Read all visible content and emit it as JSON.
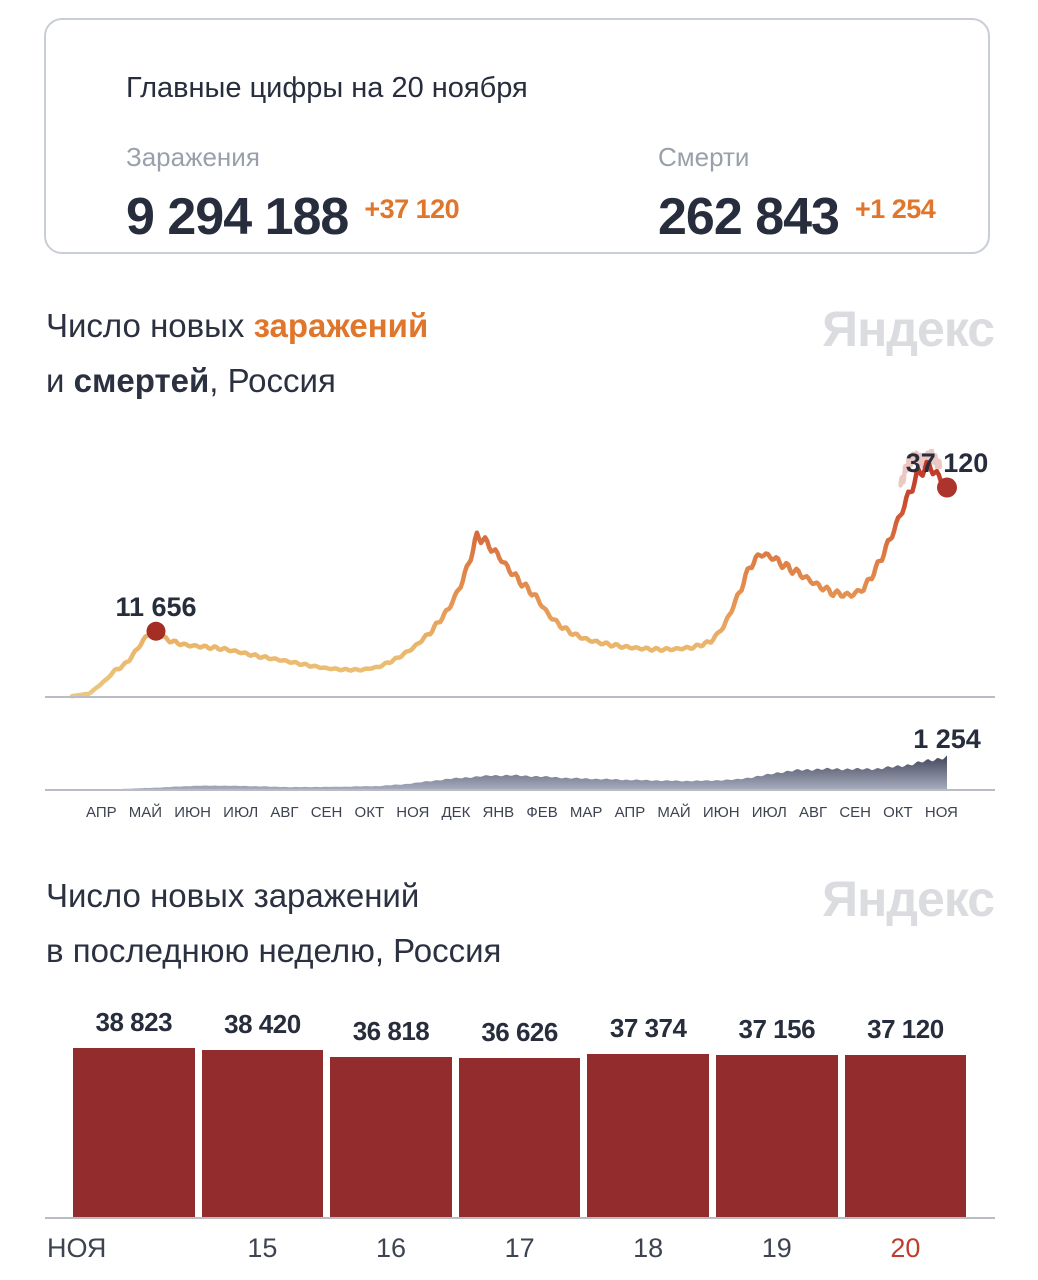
{
  "summary_card": {
    "title": "Главные цифры на 20 ноября",
    "infections": {
      "label": "Заражения",
      "value": "9 294 188",
      "delta": "+37 120"
    },
    "deaths": {
      "label": "Смерти",
      "value": "262 843",
      "delta": "+1 254"
    }
  },
  "watermark": "Яндекс",
  "timeline_section": {
    "title_part1": "Число новых ",
    "title_highlight1": "заражений",
    "title_part2": "и ",
    "title_highlight2": "смертей",
    "title_part3": ", Россия"
  },
  "weekly_section": {
    "title_line1": "Число новых заражений",
    "title_line2": "в последнюю неделю, Россия"
  },
  "chart_data": [
    {
      "type": "line",
      "name": "new-infections-timeline-russia",
      "title": "Число новых заражений, Россия",
      "x_labels": [
        "АПР",
        "МАЙ",
        "ИЮН",
        "ИЮЛ",
        "АВГ",
        "СЕН",
        "ОКТ",
        "НОЯ",
        "ДЕК",
        "ЯНВ",
        "ФЕВ",
        "МАР",
        "АПР",
        "МАЙ",
        "ИЮН",
        "ИЮЛ",
        "АВГ",
        "СЕН",
        "ОКТ",
        "НОЯ"
      ],
      "ylim": [
        0,
        44000
      ],
      "annotations": [
        {
          "label": "11 656",
          "x": 0.096,
          "value": 11656
        },
        {
          "label": "37 120",
          "x": 1.0,
          "value": 37120
        }
      ],
      "points": [
        [
          0,
          150
        ],
        [
          0.02,
          600
        ],
        [
          0.04,
          3200
        ],
        [
          0.05,
          4900
        ],
        [
          0.055,
          5100
        ],
        [
          0.065,
          6500
        ],
        [
          0.075,
          8600
        ],
        [
          0.085,
          10800
        ],
        [
          0.096,
          11656
        ],
        [
          0.105,
          10500
        ],
        [
          0.115,
          9800
        ],
        [
          0.13,
          9200
        ],
        [
          0.15,
          8900
        ],
        [
          0.17,
          8600
        ],
        [
          0.19,
          8000
        ],
        [
          0.21,
          7300
        ],
        [
          0.24,
          6500
        ],
        [
          0.27,
          5600
        ],
        [
          0.29,
          5100
        ],
        [
          0.31,
          4850
        ],
        [
          0.33,
          4800
        ],
        [
          0.35,
          5300
        ],
        [
          0.37,
          6700
        ],
        [
          0.39,
          8700
        ],
        [
          0.41,
          11500
        ],
        [
          0.43,
          15500
        ],
        [
          0.445,
          20000
        ],
        [
          0.455,
          24500
        ],
        [
          0.463,
          28500
        ],
        [
          0.47,
          28000
        ],
        [
          0.475,
          27000
        ],
        [
          0.485,
          25500
        ],
        [
          0.5,
          22500
        ],
        [
          0.515,
          20000
        ],
        [
          0.53,
          17800
        ],
        [
          0.545,
          14500
        ],
        [
          0.56,
          12400
        ],
        [
          0.575,
          11000
        ],
        [
          0.59,
          10100
        ],
        [
          0.61,
          9400
        ],
        [
          0.63,
          8900
        ],
        [
          0.65,
          8600
        ],
        [
          0.67,
          8400
        ],
        [
          0.69,
          8500
        ],
        [
          0.71,
          8800
        ],
        [
          0.73,
          9800
        ],
        [
          0.745,
          12500
        ],
        [
          0.76,
          17500
        ],
        [
          0.775,
          23200
        ],
        [
          0.787,
          25400
        ],
        [
          0.8,
          24800
        ],
        [
          0.815,
          23200
        ],
        [
          0.83,
          22000
        ],
        [
          0.85,
          20000
        ],
        [
          0.87,
          18400
        ],
        [
          0.89,
          18000
        ],
        [
          0.905,
          19200
        ],
        [
          0.92,
          23000
        ],
        [
          0.935,
          28000
        ],
        [
          0.95,
          33500
        ],
        [
          0.962,
          38000
        ],
        [
          0.972,
          40500
        ],
        [
          0.982,
          40800
        ],
        [
          0.99,
          39000
        ],
        [
          1,
          37120
        ]
      ]
    },
    {
      "type": "area",
      "name": "new-deaths-timeline-russia",
      "title": "Число новых смертей, Россия",
      "ylim": [
        0,
        1300
      ],
      "annotation": {
        "label": "1 254",
        "value": 1254
      },
      "points": [
        [
          0,
          2
        ],
        [
          0.05,
          30
        ],
        [
          0.1,
          95
        ],
        [
          0.14,
          160
        ],
        [
          0.17,
          165
        ],
        [
          0.2,
          150
        ],
        [
          0.25,
          110
        ],
        [
          0.3,
          120
        ],
        [
          0.35,
          150
        ],
        [
          0.38,
          220
        ],
        [
          0.4,
          300
        ],
        [
          0.43,
          420
        ],
        [
          0.46,
          500
        ],
        [
          0.48,
          550
        ],
        [
          0.5,
          560
        ],
        [
          0.53,
          520
        ],
        [
          0.57,
          450
        ],
        [
          0.6,
          420
        ],
        [
          0.63,
          390
        ],
        [
          0.67,
          360
        ],
        [
          0.7,
          340
        ],
        [
          0.73,
          355
        ],
        [
          0.76,
          400
        ],
        [
          0.79,
          550
        ],
        [
          0.81,
          680
        ],
        [
          0.83,
          750
        ],
        [
          0.85,
          790
        ],
        [
          0.88,
          800
        ],
        [
          0.9,
          790
        ],
        [
          0.92,
          810
        ],
        [
          0.94,
          880
        ],
        [
          0.96,
          980
        ],
        [
          0.98,
          1130
        ],
        [
          1,
          1254
        ]
      ]
    },
    {
      "type": "bar",
      "name": "new-infections-last-week-russia",
      "title": "Число новых заражений в последнюю неделю, Россия",
      "categories": [
        "НОЯ",
        "15",
        "16",
        "17",
        "18",
        "19",
        "20"
      ],
      "values": [
        38823,
        38420,
        36818,
        36626,
        37374,
        37156,
        37120
      ],
      "value_labels": [
        "38 823",
        "38 420",
        "36 818",
        "36 626",
        "37 374",
        "37 156",
        "37 120"
      ],
      "highlight_last_category": true,
      "ylim": [
        0,
        38823
      ]
    }
  ],
  "colors": {
    "accent_orange": "#e0762b",
    "dark_navy": "#272d3c",
    "muted_label_gray": "#9aa0ab",
    "watermark_gray": "#dbdcdf",
    "bar_maroon": "#932c2c",
    "dot_dark_red": "#a42d24",
    "highlight_date_red": "#c03c30",
    "axis_gray": "#b9bcc2",
    "line_low": "#ecc77f",
    "line_mid": "#dd7b43",
    "line_high": "#b93124",
    "ghost_pink": "#ecc8c2",
    "area_top": "#363b51",
    "area_bottom": "#a9aebf"
  }
}
